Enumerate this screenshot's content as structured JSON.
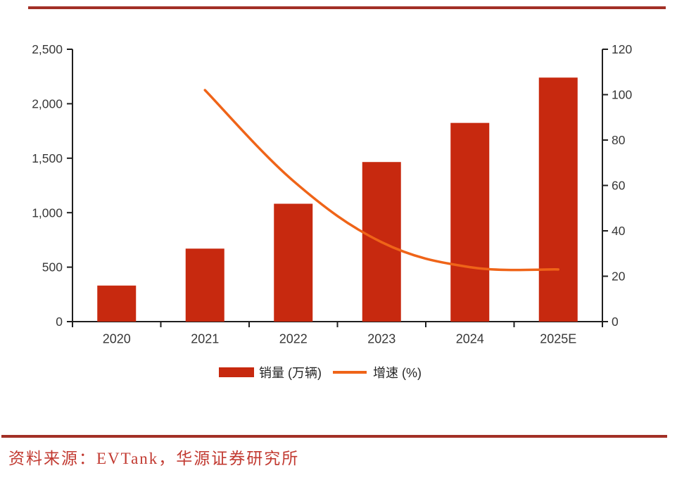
{
  "page": {
    "background": "#ffffff"
  },
  "rules": {
    "color": "#a23026"
  },
  "chart_data": {
    "type": "bar+line",
    "categories": [
      "2020",
      "2021",
      "2022",
      "2023",
      "2024",
      "2025E"
    ],
    "series": [
      {
        "name": "销量 (万辆)",
        "type": "bar",
        "axis": "left",
        "color": "#c7290f",
        "values": [
          331,
          670,
          1082,
          1465,
          1824,
          2240
        ]
      },
      {
        "name": "增速 (%)",
        "type": "line",
        "axis": "right",
        "color": "#ef6418",
        "values": [
          null,
          102,
          62,
          35,
          24,
          23
        ]
      }
    ],
    "left_axis": {
      "min": 0,
      "max": 2500,
      "step": 500,
      "tick_labels": [
        "0",
        "500",
        "1,000",
        "1,500",
        "2,000",
        "2,500"
      ]
    },
    "right_axis": {
      "min": 0,
      "max": 120,
      "step": 20,
      "tick_labels": [
        "0",
        "20",
        "40",
        "60",
        "80",
        "100",
        "120"
      ]
    },
    "axis_color": "#1f1f1f",
    "tick_label_color": "#383838",
    "grid": false,
    "legend_position": "bottom"
  },
  "legend": {
    "bar_label": "销量 (万辆)",
    "line_label": "增速 (%)"
  },
  "source": {
    "text": "资料来源：EVTank，华源证券研究所",
    "color": "#c23a31"
  }
}
